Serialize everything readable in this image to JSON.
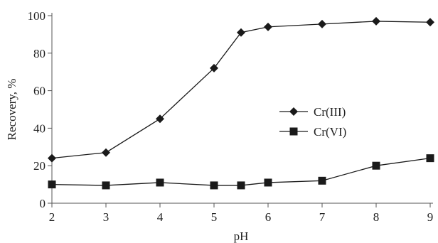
{
  "chart_data": {
    "type": "line",
    "title": "",
    "xlabel": "pH",
    "ylabel": "Recovery, %",
    "xlim": [
      2,
      9
    ],
    "ylim": [
      0,
      100
    ],
    "x_ticks": [
      2,
      3,
      4,
      5,
      6,
      7,
      8,
      9
    ],
    "y_ticks": [
      0,
      20,
      40,
      60,
      80,
      100
    ],
    "grid": false,
    "legend_position": "right",
    "series": [
      {
        "name": "Cr(III)",
        "marker": "diamond",
        "color": "#1a1a1a",
        "x": [
          2,
          3,
          4,
          5,
          5.5,
          6,
          7,
          8,
          9
        ],
        "y": [
          24,
          27,
          45,
          72,
          91,
          94,
          95.5,
          97,
          96.5
        ]
      },
      {
        "name": "Cr(VI)",
        "marker": "square",
        "color": "#1a1a1a",
        "x": [
          2,
          3,
          4,
          5,
          5.5,
          6,
          7,
          8,
          9
        ],
        "y": [
          10,
          9.5,
          11,
          9.5,
          9.5,
          11,
          12,
          20,
          24
        ]
      }
    ]
  }
}
